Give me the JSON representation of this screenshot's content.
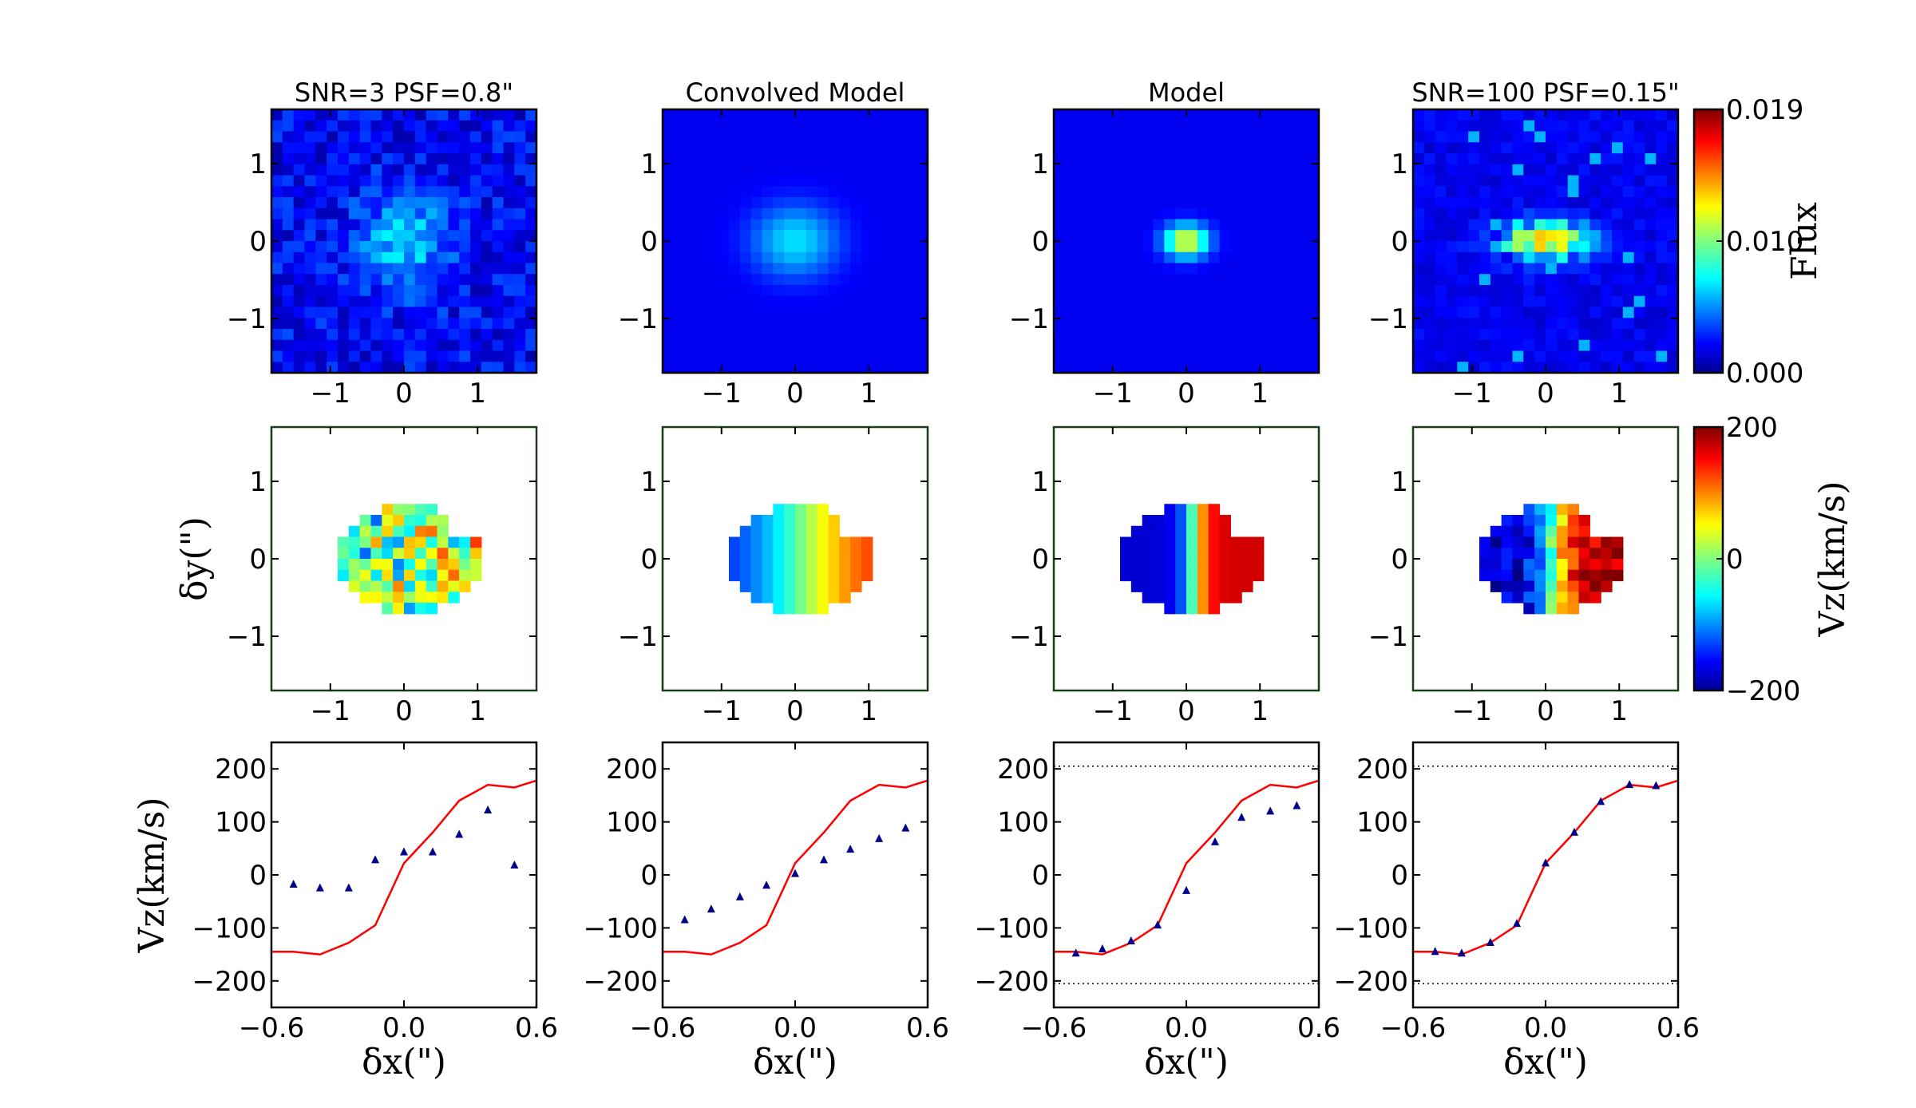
{
  "figure": {
    "titles": [
      "SNR=3 PSF=0.8\"",
      "Convolved Model",
      "Model",
      "SNR=100 PSF=0.15\""
    ],
    "ylabel_row2": "δy(\")",
    "ylabel_row3": "Vz(km/s)",
    "xlabel_row3": "δx(\")"
  },
  "colors": {
    "model_line": "#ff0000",
    "data_markers": "#00008b",
    "frame": "#000000",
    "velocity_frame": "#1a3d1a"
  },
  "chart_data": [
    {
      "type": "heatmap",
      "row": "flux",
      "titles": [
        "SNR=3 PSF=0.8\"",
        "Convolved Model",
        "Model",
        "SNR=100 PSF=0.15\""
      ],
      "xlim": [
        -1.8,
        1.8
      ],
      "ylim": [
        -1.7,
        1.7
      ],
      "xticks": [
        -1,
        0,
        1
      ],
      "yticks": [
        1,
        0,
        -1
      ],
      "tick_labels_x": [
        "−1",
        "0",
        "1"
      ],
      "tick_labels_y": [
        "1",
        "0",
        "−1"
      ],
      "colorbar": {
        "label": "Flux",
        "ticks": [
          "0.019",
          "0.010",
          "0.000"
        ],
        "range": [
          0.0,
          0.019
        ],
        "colormap": "jet"
      }
    },
    {
      "type": "heatmap",
      "row": "velocity",
      "xlim": [
        -1.8,
        1.8
      ],
      "ylim": [
        -1.7,
        1.7
      ],
      "xticks": [
        -1,
        0,
        1
      ],
      "yticks": [
        1,
        0,
        -1
      ],
      "tick_labels_x": [
        "−1",
        "0",
        "1"
      ],
      "tick_labels_y": [
        "1",
        "0",
        "−1"
      ],
      "ylabel": "δy(\")",
      "colorbar": {
        "label": "Vz(km/s)",
        "ticks": [
          "200",
          "0",
          "−200"
        ],
        "range": [
          -200,
          200
        ],
        "colormap": "jet"
      }
    },
    {
      "type": "line",
      "row": "rotation_curve",
      "xlim": [
        -0.6,
        0.6
      ],
      "ylim": [
        -250,
        250
      ],
      "xticks": [
        "−0.6",
        "0.0",
        "0.6"
      ],
      "yticks": [
        "200",
        "100",
        "0",
        "−100",
        "−200"
      ],
      "xlabel": "δx(\")",
      "ylabel": "Vz(km/s)",
      "model_curve": {
        "x": [
          -0.6,
          -0.5,
          -0.38,
          -0.25,
          -0.13,
          0.0,
          0.13,
          0.25,
          0.38,
          0.5,
          0.6
        ],
        "y": [
          -145,
          -145,
          -150,
          -128,
          -95,
          22,
          80,
          140,
          170,
          165,
          178
        ]
      },
      "panels": [
        {
          "x": [
            -0.5,
            -0.38,
            -0.25,
            -0.13,
            0.0,
            0.13,
            0.25,
            0.38,
            0.5
          ],
          "y": [
            -18,
            -25,
            -25,
            28,
            43,
            43,
            76,
            122,
            18
          ],
          "dotted_lines": []
        },
        {
          "x": [
            -0.5,
            -0.38,
            -0.25,
            -0.13,
            0.0,
            0.13,
            0.25,
            0.38,
            0.5
          ],
          "y": [
            -85,
            -65,
            -42,
            -20,
            2,
            28,
            48,
            68,
            88
          ],
          "dotted_lines": []
        },
        {
          "x": [
            -0.5,
            -0.38,
            -0.25,
            -0.13,
            0.0,
            0.13,
            0.25,
            0.38,
            0.5
          ],
          "y": [
            -148,
            -140,
            -125,
            -95,
            -30,
            62,
            108,
            120,
            130
          ],
          "dotted_lines": [
            205,
            -205
          ]
        },
        {
          "x": [
            -0.5,
            -0.38,
            -0.25,
            -0.13,
            0.0,
            0.13,
            0.25,
            0.38,
            0.5
          ],
          "y": [
            -145,
            -148,
            -128,
            -92,
            22,
            80,
            138,
            170,
            168
          ],
          "dotted_lines": [
            205,
            -205
          ]
        }
      ]
    }
  ]
}
